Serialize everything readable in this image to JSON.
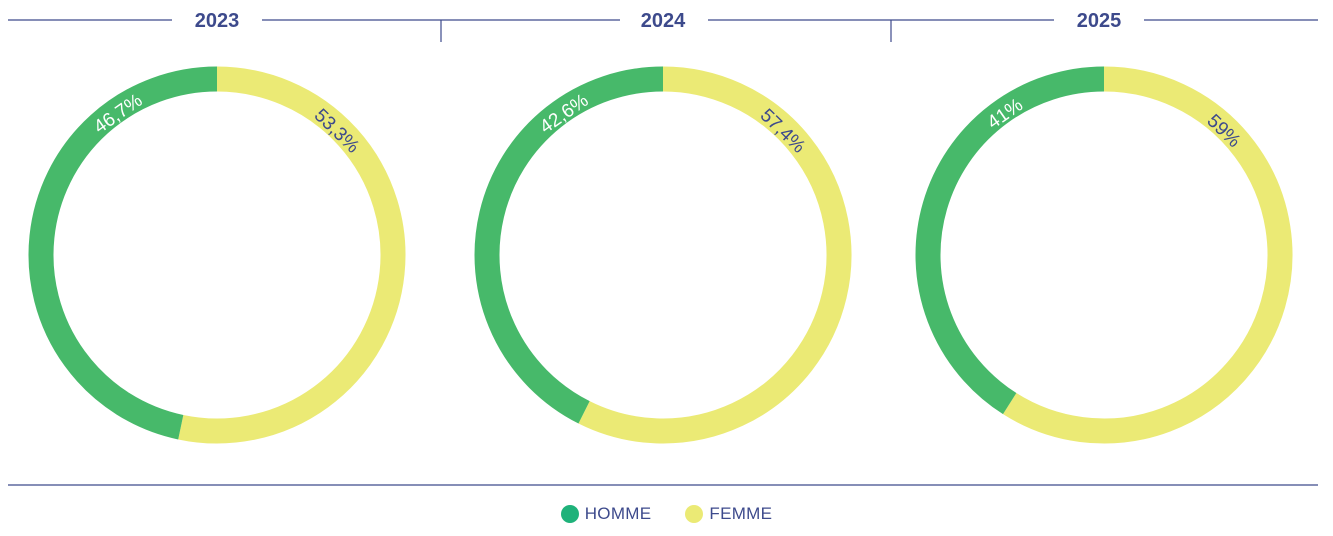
{
  "colors": {
    "accent_text": "#3d4a8c",
    "rule": "#3d4a8c",
    "homme": "#47b96a",
    "femme": "#ebea75",
    "legend_homme": "#1fb27a"
  },
  "legend": {
    "homme_label": "HOMME",
    "femme_label": "FEMME"
  },
  "chart_data": [
    {
      "type": "pie",
      "title": "2023",
      "series": [
        {
          "name": "HOMME",
          "value": 46.7,
          "label": "46,7%"
        },
        {
          "name": "FEMME",
          "value": 53.3,
          "label": "53,3%"
        }
      ]
    },
    {
      "type": "pie",
      "title": "2024",
      "series": [
        {
          "name": "HOMME",
          "value": 42.6,
          "label": "42,6%"
        },
        {
          "name": "FEMME",
          "value": 57.4,
          "label": "57,4%"
        }
      ]
    },
    {
      "type": "pie",
      "title": "2025",
      "series": [
        {
          "name": "HOMME",
          "value": 41,
          "label": "41%"
        },
        {
          "name": "FEMME",
          "value": 59,
          "label": "59%"
        }
      ]
    }
  ]
}
